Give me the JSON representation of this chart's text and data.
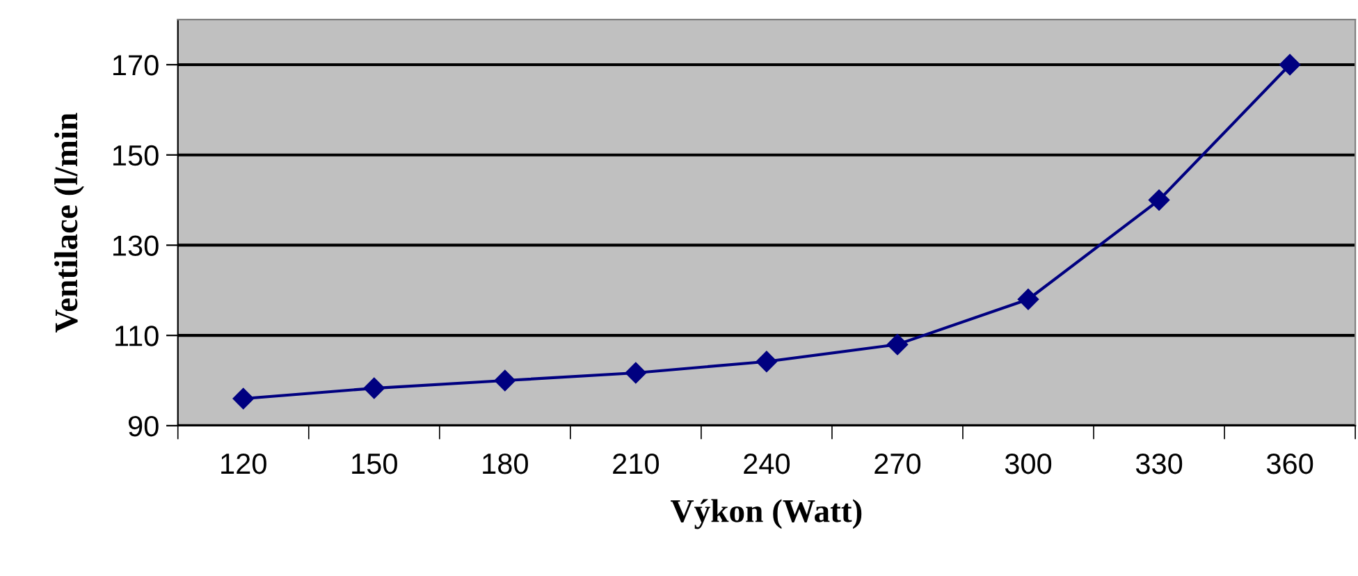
{
  "chart_data": {
    "type": "line",
    "xlabel": "Výkon (Watt)",
    "ylabel": "Ventilace (l/min",
    "categories": [
      "120",
      "150",
      "180",
      "210",
      "240",
      "270",
      "300",
      "330",
      "360"
    ],
    "series": [
      {
        "color": "#000080",
        "values": [
          96,
          98.3,
          100,
          101.7,
          104.2,
          108,
          118,
          140,
          170
        ]
      }
    ],
    "ylim": [
      90,
      180
    ],
    "yticks": [
      90,
      110,
      130,
      150,
      170
    ],
    "grid": "y",
    "marker": "diamond",
    "line_style": "solid"
  }
}
